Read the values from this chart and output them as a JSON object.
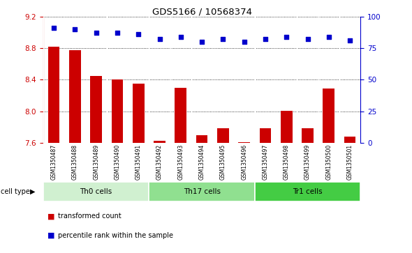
{
  "title": "GDS5166 / 10568374",
  "samples": [
    "GSM1350487",
    "GSM1350488",
    "GSM1350489",
    "GSM1350490",
    "GSM1350491",
    "GSM1350492",
    "GSM1350493",
    "GSM1350494",
    "GSM1350495",
    "GSM1350496",
    "GSM1350497",
    "GSM1350498",
    "GSM1350499",
    "GSM1350500",
    "GSM1350501"
  ],
  "transformed_count": [
    8.82,
    8.77,
    8.45,
    8.4,
    8.35,
    7.63,
    8.3,
    7.7,
    7.79,
    7.61,
    7.79,
    8.01,
    7.79,
    8.29,
    7.68
  ],
  "percentile_rank": [
    91,
    90,
    87,
    87,
    86,
    82,
    84,
    80,
    82,
    80,
    82,
    84,
    82,
    84,
    81
  ],
  "cell_groups": [
    {
      "label": "Th0 cells",
      "start": 0,
      "end": 5,
      "color": "#d0f0d0"
    },
    {
      "label": "Th17 cells",
      "start": 5,
      "end": 10,
      "color": "#90e090"
    },
    {
      "label": "Tr1 cells",
      "start": 10,
      "end": 15,
      "color": "#44cc44"
    }
  ],
  "ylim_left": [
    7.6,
    9.2
  ],
  "ylim_right": [
    0,
    100
  ],
  "bar_color": "#cc0000",
  "dot_color": "#0000cc",
  "bg_color": "#ffffff",
  "cell_bg": "#d0d0d0",
  "left_tick_color": "#cc0000",
  "right_tick_color": "#0000cc",
  "yticks_left": [
    7.6,
    8.0,
    8.4,
    8.8,
    9.2
  ],
  "yticks_right": [
    0,
    25,
    50,
    75,
    100
  ]
}
